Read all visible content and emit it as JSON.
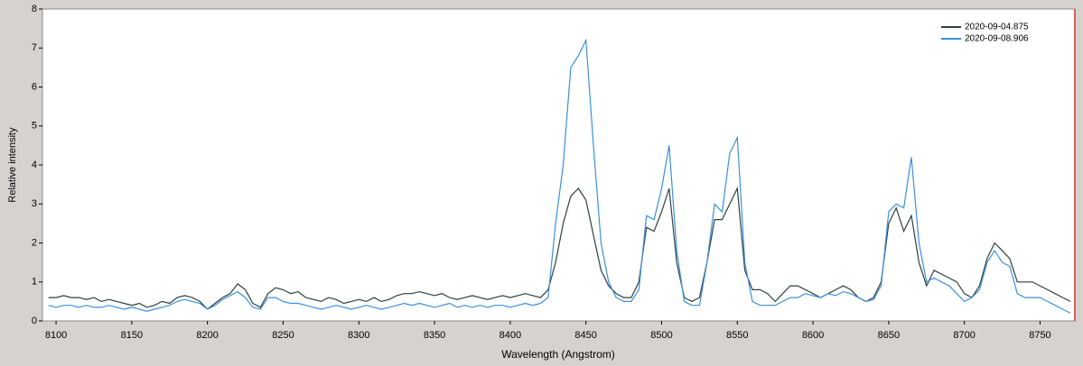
{
  "chart_data": {
    "type": "line",
    "y_label": "Relative intensity",
    "x_label": "Wavelength (Angstrom)",
    "xlim": [
      8091,
      8773
    ],
    "ylim": [
      0,
      8
    ],
    "xticks": [
      8100,
      8150,
      8200,
      8250,
      8300,
      8350,
      8400,
      8450,
      8500,
      8550,
      8600,
      8650,
      8700,
      8750
    ],
    "yticks": [
      0,
      1,
      2,
      3,
      4,
      5,
      6,
      7,
      8
    ],
    "grid": false,
    "legend": "top-right",
    "x": [
      8095,
      8100,
      8105,
      8110,
      8115,
      8120,
      8125,
      8130,
      8135,
      8140,
      8145,
      8150,
      8155,
      8160,
      8165,
      8170,
      8175,
      8180,
      8185,
      8190,
      8195,
      8200,
      8205,
      8210,
      8215,
      8220,
      8225,
      8230,
      8235,
      8240,
      8245,
      8250,
      8255,
      8260,
      8265,
      8270,
      8275,
      8280,
      8285,
      8290,
      8295,
      8300,
      8305,
      8310,
      8315,
      8320,
      8325,
      8330,
      8335,
      8340,
      8345,
      8350,
      8355,
      8360,
      8365,
      8370,
      8375,
      8380,
      8385,
      8390,
      8395,
      8400,
      8405,
      8410,
      8415,
      8420,
      8425,
      8430,
      8435,
      8440,
      8445,
      8450,
      8455,
      8460,
      8465,
      8470,
      8475,
      8480,
      8485,
      8490,
      8495,
      8500,
      8505,
      8510,
      8515,
      8520,
      8525,
      8530,
      8535,
      8540,
      8545,
      8550,
      8555,
      8560,
      8565,
      8570,
      8575,
      8580,
      8585,
      8590,
      8595,
      8600,
      8605,
      8610,
      8615,
      8620,
      8625,
      8630,
      8635,
      8640,
      8645,
      8650,
      8655,
      8660,
      8665,
      8670,
      8675,
      8680,
      8685,
      8690,
      8695,
      8700,
      8705,
      8710,
      8715,
      8720,
      8725,
      8730,
      8735,
      8740,
      8745,
      8750,
      8755,
      8760,
      8765,
      8770
    ],
    "series": [
      {
        "name": "2020-09-04.875",
        "color": "#2f3f3f",
        "values": [
          0.6,
          0.6,
          0.65,
          0.6,
          0.6,
          0.55,
          0.6,
          0.5,
          0.55,
          0.5,
          0.45,
          0.4,
          0.45,
          0.35,
          0.4,
          0.5,
          0.45,
          0.6,
          0.65,
          0.6,
          0.5,
          0.3,
          0.45,
          0.6,
          0.7,
          0.95,
          0.8,
          0.45,
          0.35,
          0.7,
          0.85,
          0.8,
          0.7,
          0.75,
          0.6,
          0.55,
          0.5,
          0.6,
          0.55,
          0.45,
          0.5,
          0.55,
          0.5,
          0.6,
          0.5,
          0.55,
          0.65,
          0.7,
          0.7,
          0.75,
          0.7,
          0.65,
          0.7,
          0.6,
          0.55,
          0.6,
          0.65,
          0.6,
          0.55,
          0.6,
          0.65,
          0.6,
          0.65,
          0.7,
          0.65,
          0.6,
          0.8,
          1.5,
          2.5,
          3.2,
          3.4,
          3.1,
          2.2,
          1.3,
          0.9,
          0.7,
          0.6,
          0.6,
          1.0,
          2.4,
          2.3,
          2.8,
          3.4,
          1.5,
          0.6,
          0.5,
          0.6,
          1.5,
          2.6,
          2.6,
          3.0,
          3.4,
          1.3,
          0.8,
          0.8,
          0.7,
          0.5,
          0.7,
          0.9,
          0.9,
          0.8,
          0.7,
          0.6,
          0.7,
          0.8,
          0.9,
          0.8,
          0.6,
          0.5,
          0.6,
          1.0,
          2.5,
          2.9,
          2.3,
          2.7,
          1.5,
          0.9,
          1.3,
          1.2,
          1.1,
          1.0,
          0.7,
          0.6,
          0.9,
          1.6,
          2.0,
          1.8,
          1.6,
          1.0,
          1.0,
          1.0,
          0.9,
          0.8,
          0.7,
          0.6,
          0.5
        ]
      },
      {
        "name": "2020-09-08.906",
        "color": "#3a8fe0",
        "values": [
          0.4,
          0.35,
          0.4,
          0.4,
          0.35,
          0.4,
          0.35,
          0.35,
          0.4,
          0.35,
          0.3,
          0.35,
          0.3,
          0.25,
          0.3,
          0.35,
          0.4,
          0.5,
          0.55,
          0.5,
          0.45,
          0.3,
          0.4,
          0.55,
          0.65,
          0.75,
          0.6,
          0.35,
          0.3,
          0.6,
          0.6,
          0.5,
          0.45,
          0.45,
          0.4,
          0.35,
          0.3,
          0.35,
          0.4,
          0.35,
          0.3,
          0.35,
          0.4,
          0.35,
          0.3,
          0.35,
          0.4,
          0.45,
          0.4,
          0.45,
          0.4,
          0.35,
          0.4,
          0.45,
          0.35,
          0.4,
          0.35,
          0.4,
          0.35,
          0.4,
          0.4,
          0.35,
          0.4,
          0.45,
          0.4,
          0.45,
          0.6,
          2.5,
          4.0,
          6.5,
          6.8,
          7.2,
          4.5,
          2.0,
          1.0,
          0.6,
          0.5,
          0.5,
          0.8,
          2.7,
          2.6,
          3.4,
          4.5,
          1.8,
          0.5,
          0.4,
          0.4,
          1.5,
          3.0,
          2.8,
          4.3,
          4.7,
          1.5,
          0.5,
          0.4,
          0.4,
          0.4,
          0.5,
          0.6,
          0.6,
          0.7,
          0.65,
          0.6,
          0.7,
          0.65,
          0.75,
          0.7,
          0.6,
          0.5,
          0.55,
          0.9,
          2.8,
          3.0,
          2.9,
          4.2,
          2.0,
          1.0,
          1.1,
          1.0,
          0.9,
          0.7,
          0.5,
          0.6,
          0.8,
          1.5,
          1.8,
          1.5,
          1.4,
          0.7,
          0.6,
          0.6,
          0.6,
          0.5,
          0.4,
          0.3,
          0.2
        ]
      }
    ]
  }
}
